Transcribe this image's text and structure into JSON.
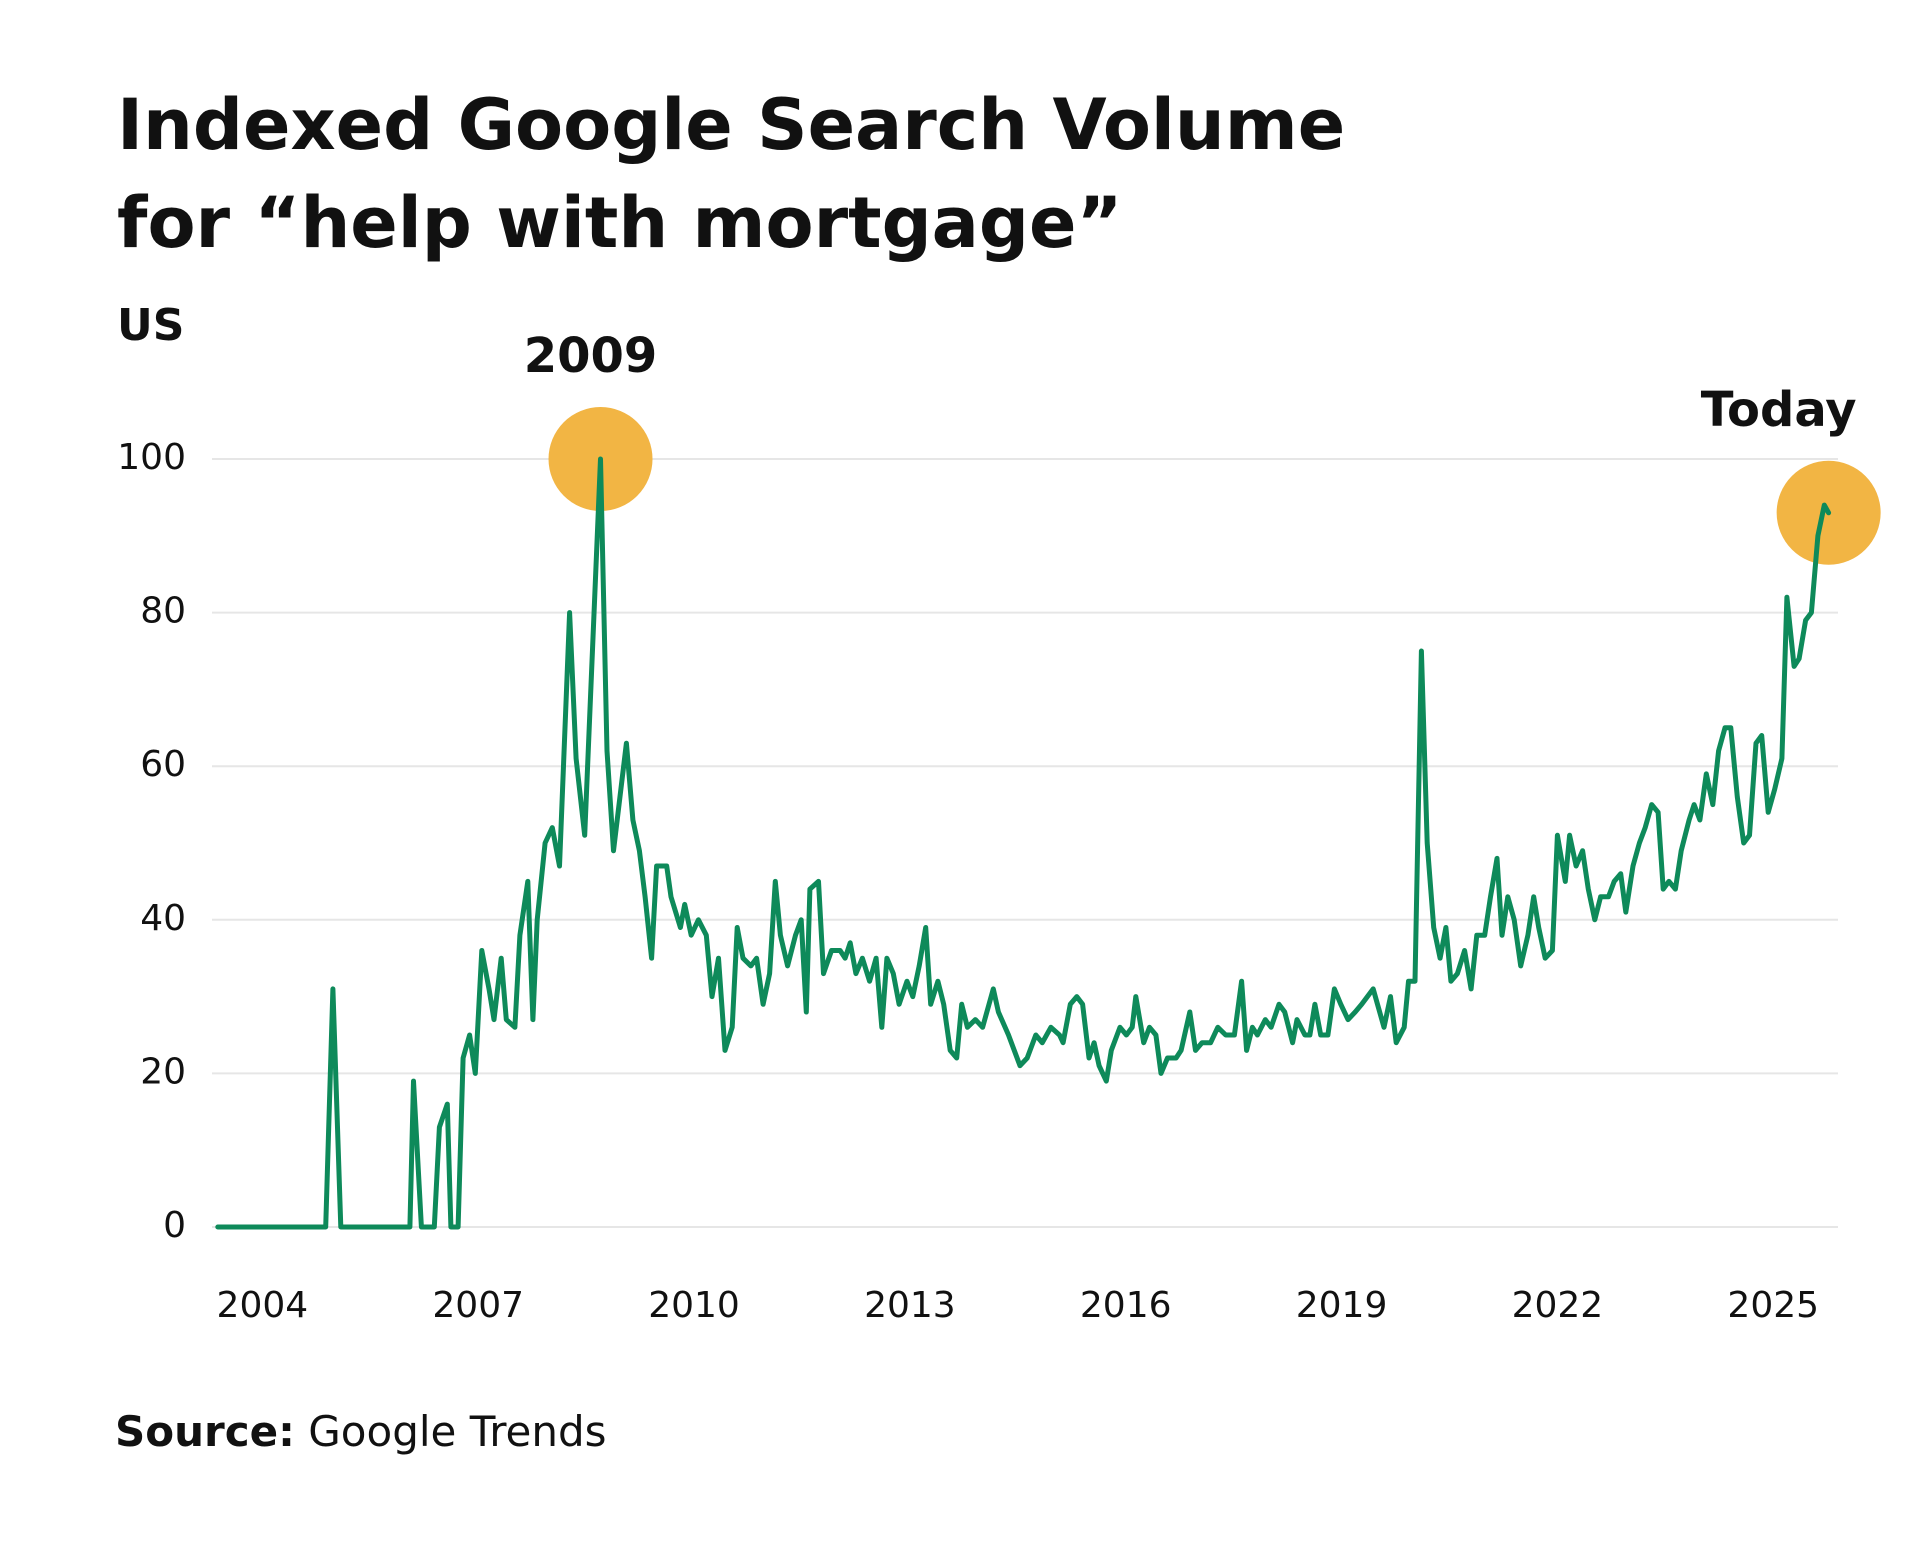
{
  "chart_data": {
    "type": "line",
    "title": [
      "Indexed Google Search Volume",
      "for “help with mortgage”"
    ],
    "subtitle": "US",
    "annotations": [
      "2009",
      "Today"
    ],
    "annotation_color": "#f2b544",
    "source": {
      "label": "Source:",
      "text": "Google Trends"
    },
    "xlim": [
      2003.3,
      2025.9
    ],
    "xticks": [
      2004,
      2007,
      2010,
      2013,
      2016,
      2019,
      2022,
      2025
    ],
    "ylim": [
      0,
      100
    ],
    "yticks": [
      0,
      20,
      40,
      60,
      80,
      100
    ],
    "grid": true,
    "x": [
      2003.38,
      2004.88,
      2004.98,
      2005.09,
      2006.05,
      2006.1,
      2006.21,
      2006.39,
      2006.46,
      2006.57,
      2006.62,
      2006.72,
      2006.79,
      2006.88,
      2006.96,
      2007.05,
      2007.15,
      2007.22,
      2007.32,
      2007.39,
      2007.51,
      2007.58,
      2007.69,
      2007.76,
      2007.82,
      2007.93,
      2008.03,
      2008.13,
      2008.27,
      2008.36,
      2008.48,
      2008.7,
      2008.79,
      2008.88,
      2009.06,
      2009.15,
      2009.24,
      2009.32,
      2009.41,
      2009.48,
      2009.62,
      2009.68,
      2009.81,
      2009.87,
      2009.96,
      2010.06,
      2010.17,
      2010.25,
      2010.34,
      2010.43,
      2010.53,
      2010.6,
      2010.68,
      2010.79,
      2010.87,
      2010.96,
      2011.05,
      2011.13,
      2011.2,
      2011.3,
      2011.41,
      2011.49,
      2011.56,
      2011.61,
      2011.73,
      2011.8,
      2011.91,
      2012.03,
      2012.1,
      2012.17,
      2012.25,
      2012.34,
      2012.44,
      2012.53,
      2012.61,
      2012.68,
      2012.77,
      2012.85,
      2012.96,
      2013.04,
      2013.13,
      2013.22,
      2013.29,
      2013.39,
      2013.47,
      2013.56,
      2013.65,
      2013.72,
      2013.8,
      2013.91,
      2014.01,
      2014.16,
      2014.23,
      2014.37,
      2014.53,
      2014.63,
      2014.75,
      2014.84,
      2014.96,
      2015.08,
      2015.13,
      2015.23,
      2015.32,
      2015.4,
      2015.49,
      2015.56,
      2015.63,
      2015.73,
      2015.8,
      2015.92,
      2016.01,
      2016.09,
      2016.14,
      2016.25,
      2016.33,
      2016.42,
      2016.49,
      2016.58,
      2016.7,
      2016.77,
      2016.89,
      2016.97,
      2017.06,
      2017.18,
      2017.28,
      2017.39,
      2017.51,
      2017.61,
      2017.68,
      2017.76,
      2017.83,
      2017.94,
      2018.02,
      2018.13,
      2018.21,
      2018.32,
      2018.38,
      2018.49,
      2018.56,
      2018.63,
      2018.71,
      2018.81,
      2018.9,
      2018.99,
      2019.09,
      2019.19,
      2019.28,
      2019.44,
      2019.5,
      2019.59,
      2019.68,
      2019.76,
      2019.87,
      2019.93,
      2020.02,
      2020.11,
      2020.19,
      2020.28,
      2020.37,
      2020.45,
      2020.52,
      2020.61,
      2020.71,
      2020.8,
      2020.88,
      2020.99,
      2021.07,
      2021.16,
      2021.23,
      2021.31,
      2021.4,
      2021.49,
      2021.59,
      2021.67,
      2021.74,
      2021.83,
      2021.93,
      2022.0,
      2022.11,
      2022.17,
      2022.26,
      2022.35,
      2022.43,
      2022.52,
      2022.6,
      2022.71,
      2022.79,
      2022.88,
      2022.95,
      2023.05,
      2023.14,
      2023.22,
      2023.31,
      2023.4,
      2023.47,
      2023.55,
      2023.64,
      2023.72,
      2023.83,
      2023.9,
      2023.98,
      2024.07,
      2024.16,
      2024.24,
      2024.33,
      2024.41,
      2024.5,
      2024.59,
      2024.67,
      2024.76,
      2024.84,
      2024.93,
      2025.02,
      2025.12,
      2025.19,
      2025.29,
      2025.36,
      2025.45,
      2025.53,
      2025.62,
      2025.71,
      2025.77
    ],
    "series": [
      {
        "name": "help with mortgage",
        "color": "#0e8a5a",
        "values": [
          0,
          0,
          31,
          0,
          0,
          19,
          0,
          0,
          13,
          16,
          0,
          0,
          22,
          25,
          20,
          36,
          31,
          27,
          35,
          27,
          26,
          38,
          45,
          27,
          40,
          50,
          52,
          47,
          80,
          61,
          51,
          100,
          62,
          49,
          63,
          53,
          49,
          43,
          35,
          47,
          47,
          43,
          39,
          42,
          38,
          40,
          38,
          30,
          35,
          23,
          26,
          39,
          35,
          34,
          35,
          29,
          33,
          45,
          38,
          34,
          38,
          40,
          28,
          44,
          45,
          33,
          36,
          36,
          35,
          37,
          33,
          35,
          32,
          35,
          26,
          35,
          33,
          29,
          32,
          30,
          34,
          39,
          29,
          32,
          29,
          23,
          22,
          29,
          26,
          27,
          26,
          31,
          28,
          25,
          21,
          22,
          25,
          24,
          26,
          25,
          24,
          29,
          30,
          29,
          22,
          24,
          21,
          19,
          23,
          26,
          25,
          26,
          30,
          24,
          26,
          25,
          20,
          22,
          22,
          23,
          28,
          23,
          24,
          24,
          26,
          25,
          25,
          32,
          23,
          26,
          25,
          27,
          26,
          29,
          28,
          24,
          27,
          25,
          25,
          29,
          25,
          25,
          31,
          29,
          27,
          28,
          29,
          31,
          29,
          26,
          30,
          24,
          26,
          32,
          32,
          75,
          50,
          39,
          35,
          39,
          32,
          33,
          36,
          31,
          38,
          38,
          43,
          48,
          38,
          43,
          40,
          34,
          38,
          43,
          39,
          35,
          36,
          51,
          45,
          51,
          47,
          49,
          44,
          40,
          43,
          43,
          45,
          46,
          41,
          47,
          50,
          52,
          55,
          54,
          44,
          45,
          44,
          49,
          53,
          55,
          53,
          59,
          55,
          62,
          65,
          65,
          56,
          50,
          51,
          63,
          64,
          54,
          57,
          61,
          82,
          73,
          74,
          79,
          80,
          90,
          94,
          93
        ]
      }
    ]
  }
}
